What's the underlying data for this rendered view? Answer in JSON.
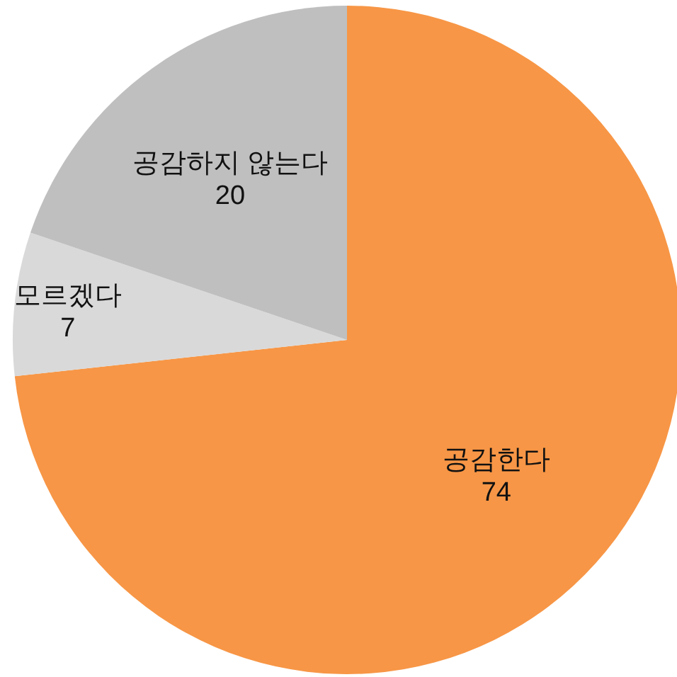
{
  "chart_data": {
    "type": "pie",
    "categories": [
      "공감한다",
      "모르겠다",
      "공감하지 않는다"
    ],
    "values": [
      74,
      7,
      20
    ],
    "colors": [
      "#f79646",
      "#d9d9d9",
      "#bfbfbf"
    ],
    "data_labels": true
  }
}
